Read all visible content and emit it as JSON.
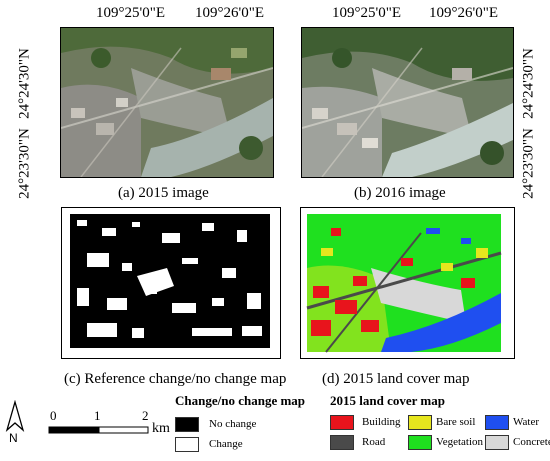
{
  "coordinates": {
    "lon_left": "109°25'0\"E",
    "lon_right": "109°26'0\"E",
    "lat_top": "24°24'30\"N",
    "lat_bottom": "24°23'30\"N"
  },
  "panels": {
    "a": "(a) 2015 image",
    "b": "(b) 2016 image",
    "c": "(c) Reference change/no change map",
    "d": "(d) 2015 land cover map"
  },
  "north_arrow": "N",
  "scale_bar": {
    "ticks": [
      "0",
      "1",
      "2"
    ],
    "unit": "km"
  },
  "change_legend": {
    "title": "Change/no change map",
    "items": [
      {
        "label": "No change",
        "color": "#000000"
      },
      {
        "label": "Change",
        "color": "#ffffff"
      }
    ]
  },
  "landcover_legend": {
    "title": "2015 land cover map",
    "items": [
      {
        "label": "Building",
        "color": "#e8141c"
      },
      {
        "label": "Bare soil",
        "color": "#e6e61e"
      },
      {
        "label": "Water",
        "color": "#1f4ff0"
      },
      {
        "label": "Road",
        "color": "#4a4a4a"
      },
      {
        "label": "Vegetation",
        "color": "#1fe01f"
      },
      {
        "label": "Concrete",
        "color": "#d8d8d8"
      }
    ]
  }
}
